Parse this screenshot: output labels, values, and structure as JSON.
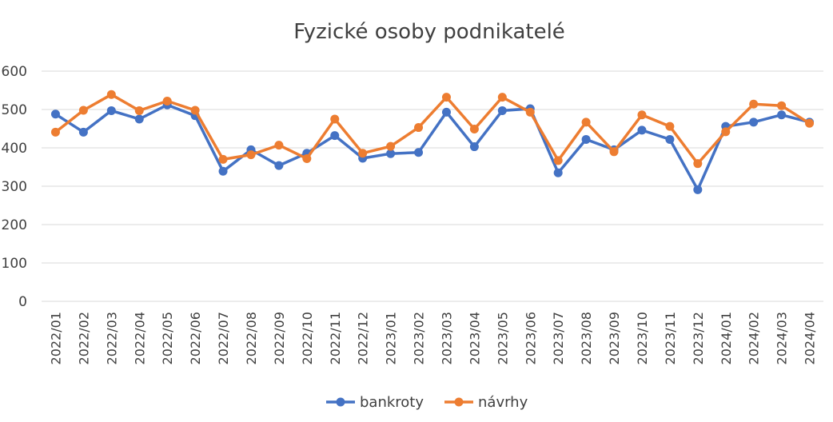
{
  "chart_data": {
    "type": "line",
    "title": "Fyzické osoby podnikatelé",
    "xlabel": "",
    "ylabel": "",
    "ylim": [
      0,
      600
    ],
    "yticks": [
      0,
      100,
      200,
      300,
      400,
      500,
      600
    ],
    "grid": true,
    "legend_position": "bottom",
    "categories": [
      "2022/01",
      "2022/02",
      "2022/03",
      "2022/04",
      "2022/05",
      "2022/06",
      "2022/07",
      "2022/08",
      "2022/09",
      "2022/10",
      "2022/11",
      "2022/12",
      "2023/01",
      "2023/02",
      "2023/03",
      "2023/04",
      "2023/05",
      "2023/06",
      "2023/07",
      "2023/08",
      "2023/09",
      "2023/10",
      "2023/11",
      "2023/12",
      "2024/01",
      "2024/02",
      "2024/03",
      "2024/04"
    ],
    "series": [
      {
        "name": "bankroty",
        "color": "#4472C4",
        "values": [
          488,
          441,
          497,
          475,
          512,
          484,
          339,
          395,
          354,
          386,
          432,
          373,
          385,
          388,
          493,
          403,
          497,
          502,
          335,
          422,
          395,
          446,
          422,
          291,
          456,
          467,
          486,
          467
        ]
      },
      {
        "name": "návrhy",
        "color": "#ED7D31",
        "values": [
          441,
          498,
          539,
          497,
          522,
          498,
          370,
          382,
          407,
          372,
          475,
          386,
          404,
          453,
          532,
          449,
          532,
          493,
          367,
          467,
          390,
          486,
          456,
          359,
          442,
          514,
          510,
          464
        ]
      }
    ]
  }
}
